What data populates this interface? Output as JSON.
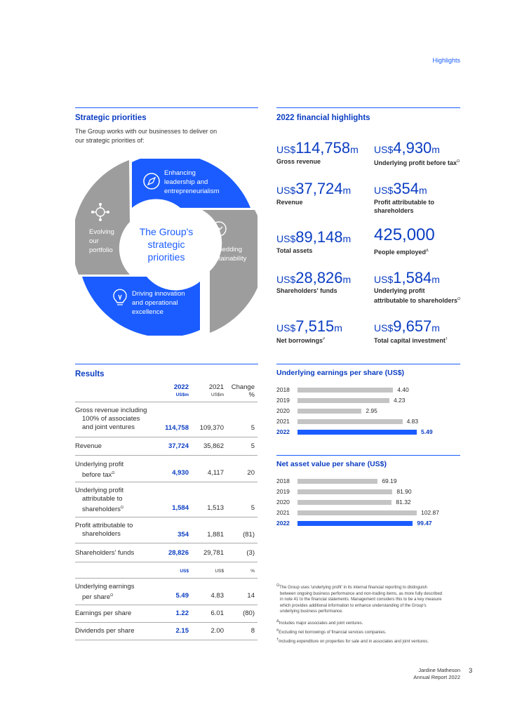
{
  "header": {
    "label": "Highlights"
  },
  "strategic": {
    "title": "Strategic priorities",
    "intro_line1": "The Group works with our businesses to deliver on",
    "intro_line2": "our strategic priorities of:",
    "center_l1": "The Group's",
    "center_l2": "strategic",
    "center_l3": "priorities",
    "q1": {
      "l1": "Enhancing",
      "l2": "leadership and",
      "l3": "entrepreneurialism",
      "icon": "compass-icon"
    },
    "q2": {
      "l1": "Embedding",
      "l2": "sustainability",
      "icon": "tree-icon"
    },
    "q3": {
      "l1": "Driving innovation",
      "l2": "and operational",
      "l3": "excellence",
      "icon": "lightbulb-icon"
    },
    "q4": {
      "l1": "Evolving",
      "l2": "our",
      "l3": "portfolio",
      "icon": "network-icon"
    },
    "colors": {
      "blue": "#1a5cff",
      "grey": "#9d9d9d"
    }
  },
  "highlights": {
    "title": "2022 financial highlights",
    "items": [
      {
        "prefix": "US$",
        "value": "114,758",
        "suffix": "m",
        "label": "Gross revenue"
      },
      {
        "prefix": "US$",
        "value": "4,930",
        "suffix": "m",
        "label": "Underlying profit before tax",
        "mark": "Ω"
      },
      {
        "prefix": "US$",
        "value": "37,724",
        "suffix": "m",
        "label": "Revenue"
      },
      {
        "prefix": "US$",
        "value": "354",
        "suffix": "m",
        "label_l1": "Profit attributable to",
        "label_l2": "shareholders"
      },
      {
        "prefix": "US$",
        "value": "89,148",
        "suffix": "m",
        "label": "Total assets"
      },
      {
        "prefix": "",
        "value": "425,000",
        "suffix": "",
        "label": "People employed",
        "mark": "Δ"
      },
      {
        "prefix": "US$",
        "value": "28,826",
        "suffix": "m",
        "label": "Shareholders' funds"
      },
      {
        "prefix": "US$",
        "value": "1,584",
        "suffix": "m",
        "label_l1": "Underlying profit",
        "label_l2": "attributable to shareholders",
        "mark": "Ω"
      },
      {
        "prefix": "US$",
        "value": "7,515",
        "suffix": "m",
        "label": "Net borrowings",
        "mark": "#"
      },
      {
        "prefix": "US$",
        "value": "9,657",
        "suffix": "m",
        "label": "Total capital investment",
        "mark": "†"
      }
    ]
  },
  "results": {
    "title": "Results",
    "col1": "2022",
    "col2": "2021",
    "col3_l1": "Change",
    "col3_l2": "%",
    "unit1": "US$m",
    "unit2": "US$m",
    "unit_b1": "US$",
    "unit_b2": "US$",
    "unit_b3": "%",
    "r1": {
      "l1": "Gross revenue including",
      "l2": "100% of associates",
      "l3": "and joint ventures",
      "v1": "114,758",
      "v2": "109,370",
      "v3": "5"
    },
    "r2": {
      "l1": "Revenue",
      "v1": "37,724",
      "v2": "35,862",
      "v3": "5"
    },
    "r3": {
      "l1": "Underlying profit",
      "l2": "before tax",
      "mark": "Ω",
      "v1": "4,930",
      "v2": "4,117",
      "v3": "20"
    },
    "r4": {
      "l1": "Underlying profit",
      "l2": "attributable to",
      "l3": "shareholders",
      "mark": "Ω",
      "v1": "1,584",
      "v2": "1,513",
      "v3": "5"
    },
    "r5": {
      "l1": "Profit attributable to",
      "l2": "shareholders",
      "v1": "354",
      "v2": "1,881",
      "v3": "(81)"
    },
    "r6": {
      "l1": "Shareholders' funds",
      "v1": "28,826",
      "v2": "29,781",
      "v3": "(3)"
    },
    "r7": {
      "l1": "Underlying earnings",
      "l2": "per share",
      "mark": "Ω",
      "v1": "5.49",
      "v2": "4.83",
      "v3": "14"
    },
    "r8": {
      "l1": "Earnings per share",
      "v1": "1.22",
      "v2": "6.01",
      "v3": "(80)"
    },
    "r9": {
      "l1": "Dividends per share",
      "v1": "2.15",
      "v2": "2.00",
      "v3": "8"
    }
  },
  "chart_data": [
    {
      "type": "bar",
      "orientation": "horizontal",
      "title": "Underlying earnings per share (US$)",
      "categories": [
        "2018",
        "2019",
        "2020",
        "2021",
        "2022"
      ],
      "values": [
        4.4,
        4.23,
        2.95,
        4.83,
        5.49
      ],
      "labels": [
        "4.40",
        "4.23",
        "2.95",
        "4.83",
        "5.49"
      ],
      "highlight": "2022",
      "colors": {
        "base": "#c4c4c4",
        "highlight": "#1a5cff"
      }
    },
    {
      "type": "bar",
      "orientation": "horizontal",
      "title": "Net asset value per share (US$)",
      "categories": [
        "2018",
        "2019",
        "2020",
        "2021",
        "2022"
      ],
      "values": [
        69.19,
        81.9,
        81.32,
        102.87,
        99.47
      ],
      "labels": [
        "69.19",
        "81.90",
        "81.32",
        "102.87",
        "99.47"
      ],
      "highlight": "2022",
      "colors": {
        "base": "#c4c4c4",
        "highlight": "#1a5cff"
      }
    }
  ],
  "footnotes": {
    "f1_mark": "Ω",
    "f1_l1": "The Group uses 'underlying profit' in its internal financial reporting to distinguish",
    "f1_l2": "between ongoing business performance and non-trading items, as more fully described",
    "f1_l3": "in note 41 to the financial statements. Management considers this to be a key measure",
    "f1_l4": "which provides additional information to enhance understanding of the Group's",
    "f1_l5": "underlying business performance.",
    "f2_mark": "Δ",
    "f2": "Includes major associates and joint ventures.",
    "f3_mark": "#",
    "f3": "Excluding net borrowings of financial services companies.",
    "f4_mark": "†",
    "f4": "Including expenditure on properties for sale and in associates and joint ventures."
  },
  "footer": {
    "company": "Jardine Matheson",
    "report": "Annual Report 2022",
    "page": "3"
  }
}
